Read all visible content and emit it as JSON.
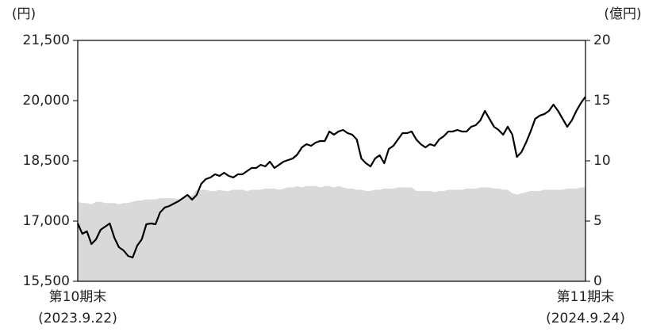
{
  "chart_data": {
    "type": "line",
    "y_label": "(円)",
    "y2_label": "(億円)",
    "categories": [
      "第10期末\n(2023.9.22)",
      null,
      null,
      null,
      null,
      null,
      null,
      null,
      null,
      null,
      null,
      null,
      null,
      null,
      null,
      null,
      null,
      null,
      null,
      null,
      null,
      null,
      null,
      null,
      null,
      null,
      null,
      null,
      null,
      null,
      null,
      null,
      null,
      null,
      null,
      null,
      null,
      null,
      null,
      null,
      null,
      null,
      null,
      null,
      null,
      null,
      null,
      null,
      null,
      null,
      null,
      null,
      null,
      null,
      null,
      null,
      null,
      null,
      null,
      null,
      null,
      null,
      null,
      null,
      null,
      null,
      null,
      null,
      null,
      null,
      null,
      null,
      null,
      null,
      null,
      null,
      null,
      null,
      null,
      null,
      null,
      null,
      null,
      null,
      null,
      null,
      null,
      null,
      null,
      null,
      null,
      null,
      null,
      null,
      null,
      null,
      null,
      null,
      null,
      null,
      null,
      null,
      null,
      null,
      null,
      null,
      null,
      null,
      null,
      null,
      null,
      "第11期末\n(2024.9.24)"
    ],
    "series": [
      {
        "type": "area",
        "axis": "y2",
        "color": "#d9d9d9",
        "values": [
          6.6,
          6.5,
          6.5,
          6.4,
          6.6,
          6.6,
          6.5,
          6.5,
          6.5,
          6.4,
          6.5,
          6.5,
          6.6,
          6.7,
          6.7,
          6.8,
          6.8,
          6.8,
          6.9,
          6.9,
          6.9,
          6.9,
          6.8,
          6.9,
          7.0,
          7.1,
          7.6,
          7.6,
          7.6,
          7.5,
          7.5,
          7.6,
          7.5,
          7.5,
          7.6,
          7.6,
          7.6,
          7.5,
          7.6,
          7.6,
          7.6,
          7.7,
          7.7,
          7.7,
          7.6,
          7.7,
          7.8,
          7.8,
          7.9,
          7.8,
          7.9,
          7.9,
          7.9,
          7.8,
          7.9,
          7.9,
          7.8,
          7.9,
          7.8,
          7.7,
          7.7,
          7.6,
          7.6,
          7.5,
          7.5,
          7.6,
          7.6,
          7.7,
          7.7,
          7.7,
          7.8,
          7.8,
          7.8,
          7.8,
          7.5,
          7.5,
          7.5,
          7.5,
          7.4,
          7.5,
          7.5,
          7.6,
          7.6,
          7.6,
          7.6,
          7.7,
          7.7,
          7.7,
          7.8,
          7.8,
          7.8,
          7.7,
          7.7,
          7.6,
          7.6,
          7.3,
          7.2,
          7.3,
          7.4,
          7.5,
          7.5,
          7.5,
          7.6,
          7.6,
          7.6,
          7.6,
          7.6,
          7.7,
          7.7,
          7.7,
          7.8,
          7.8
        ]
      },
      {
        "type": "line",
        "axis": "y",
        "color": "#000000",
        "values": [
          16941,
          16684,
          16743,
          16428,
          16546,
          16783,
          16862,
          16941,
          16586,
          16349,
          16270,
          16132,
          16092,
          16388,
          16546,
          16921,
          16941,
          16921,
          17217,
          17336,
          17375,
          17434,
          17493,
          17572,
          17651,
          17533,
          17651,
          17928,
          18046,
          18086,
          18165,
          18125,
          18204,
          18125,
          18086,
          18165,
          18165,
          18244,
          18322,
          18322,
          18401,
          18362,
          18480,
          18322,
          18401,
          18480,
          18520,
          18559,
          18658,
          18836,
          18915,
          18875,
          18954,
          18994,
          18994,
          19231,
          19152,
          19231,
          19270,
          19191,
          19152,
          19033,
          18559,
          18441,
          18362,
          18559,
          18639,
          18441,
          18796,
          18875,
          19033,
          19191,
          19191,
          19231,
          19033,
          18915,
          18836,
          18915,
          18875,
          19033,
          19112,
          19231,
          19231,
          19270,
          19231,
          19231,
          19349,
          19388,
          19507,
          19744,
          19547,
          19349,
          19270,
          19152,
          19349,
          19152,
          18599,
          18718,
          18954,
          19231,
          19547,
          19626,
          19665,
          19744,
          19902,
          19744,
          19547,
          19349,
          19507,
          19744,
          19941,
          20099
        ]
      }
    ],
    "ylim": [
      15500,
      21500
    ],
    "yticks": [
      {
        "value": 15500,
        "label": "15,500"
      },
      {
        "value": 17000,
        "label": "17,000"
      },
      {
        "value": 18500,
        "label": "18,500"
      },
      {
        "value": 20000,
        "label": "20,000"
      },
      {
        "value": 21500,
        "label": "21,500"
      }
    ],
    "y2lim": [
      0,
      20
    ],
    "y2ticks": [
      0,
      5,
      10,
      15,
      20
    ]
  }
}
